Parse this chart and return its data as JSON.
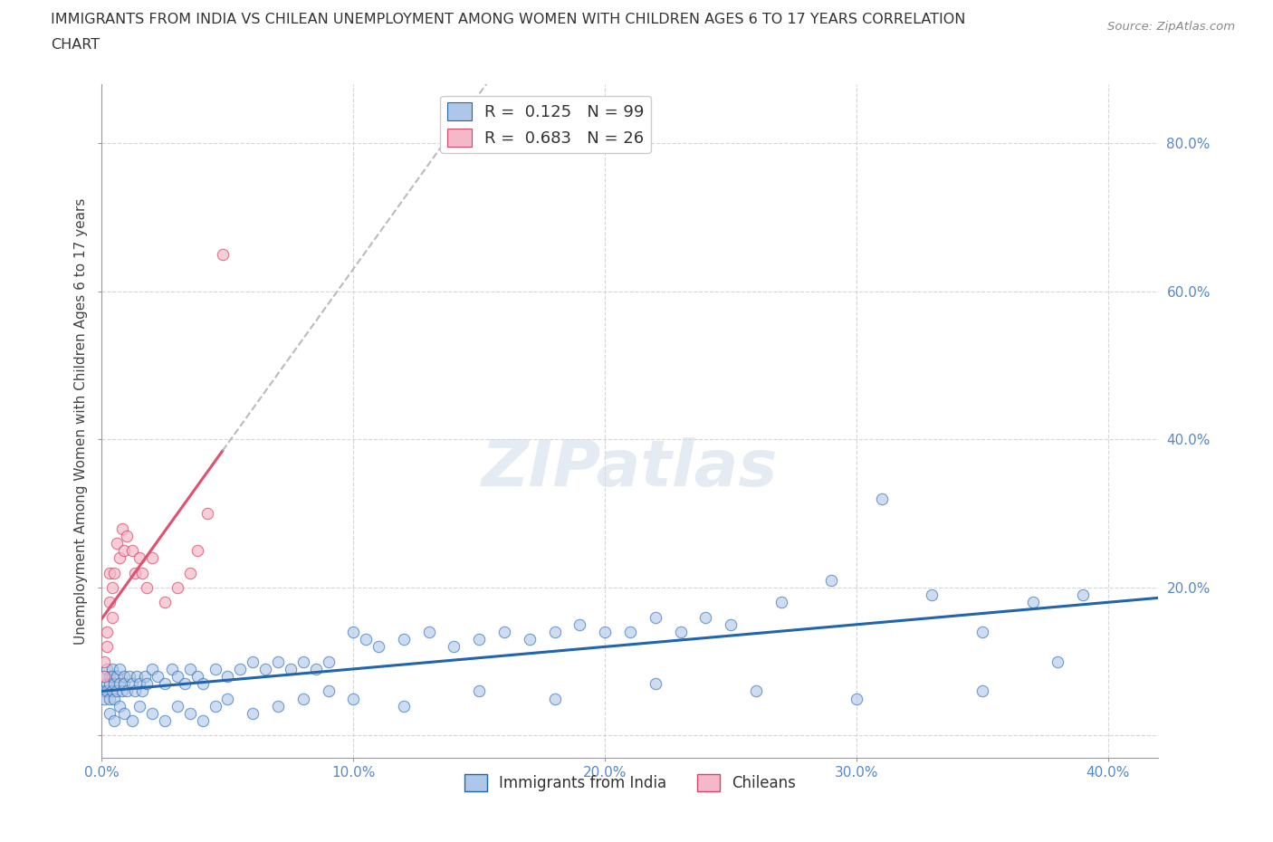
{
  "title_line1": "IMMIGRANTS FROM INDIA VS CHILEAN UNEMPLOYMENT AMONG WOMEN WITH CHILDREN AGES 6 TO 17 YEARS CORRELATION",
  "title_line2": "CHART",
  "source": "Source: ZipAtlas.com",
  "ylabel": "Unemployment Among Women with Children Ages 6 to 17 years",
  "R_india": 0.125,
  "N_india": 99,
  "R_chilean": 0.683,
  "N_chilean": 26,
  "india_face_color": "#aec6e8",
  "india_edge_color": "#2166ac",
  "chilean_face_color": "#f4b8c8",
  "chilean_edge_color": "#d6466a",
  "india_line_color": "#2166ac",
  "chilean_line_color": "#e05070",
  "chilean_dash_color": "#bbbbbb",
  "background_color": "#ffffff",
  "grid_color": "#cccccc",
  "tick_color": "#5588cc",
  "xlim": [
    0.0,
    0.42
  ],
  "ylim": [
    -0.03,
    0.88
  ],
  "x_ticks": [
    0.0,
    0.1,
    0.2,
    0.3,
    0.4
  ],
  "y_ticks": [
    0.0,
    0.2,
    0.4,
    0.6,
    0.8
  ],
  "india_x": [
    0.001,
    0.001,
    0.001,
    0.002,
    0.002,
    0.002,
    0.003,
    0.003,
    0.003,
    0.004,
    0.004,
    0.004,
    0.005,
    0.005,
    0.006,
    0.006,
    0.007,
    0.007,
    0.008,
    0.009,
    0.009,
    0.01,
    0.011,
    0.012,
    0.013,
    0.014,
    0.015,
    0.016,
    0.017,
    0.018,
    0.02,
    0.022,
    0.025,
    0.028,
    0.03,
    0.033,
    0.035,
    0.038,
    0.04,
    0.045,
    0.05,
    0.055,
    0.06,
    0.065,
    0.07,
    0.075,
    0.08,
    0.085,
    0.09,
    0.1,
    0.105,
    0.11,
    0.12,
    0.13,
    0.14,
    0.15,
    0.16,
    0.17,
    0.18,
    0.19,
    0.2,
    0.21,
    0.22,
    0.23,
    0.24,
    0.25,
    0.27,
    0.29,
    0.31,
    0.33,
    0.35,
    0.37,
    0.39,
    0.003,
    0.005,
    0.007,
    0.009,
    0.012,
    0.015,
    0.02,
    0.025,
    0.03,
    0.035,
    0.04,
    0.045,
    0.05,
    0.06,
    0.07,
    0.08,
    0.09,
    0.1,
    0.12,
    0.15,
    0.18,
    0.22,
    0.26,
    0.3,
    0.35,
    0.38
  ],
  "india_y": [
    0.06,
    0.08,
    0.05,
    0.07,
    0.09,
    0.06,
    0.08,
    0.05,
    0.07,
    0.09,
    0.06,
    0.08,
    0.07,
    0.05,
    0.06,
    0.08,
    0.07,
    0.09,
    0.06,
    0.08,
    0.07,
    0.06,
    0.08,
    0.07,
    0.06,
    0.08,
    0.07,
    0.06,
    0.08,
    0.07,
    0.09,
    0.08,
    0.07,
    0.09,
    0.08,
    0.07,
    0.09,
    0.08,
    0.07,
    0.09,
    0.08,
    0.09,
    0.1,
    0.09,
    0.1,
    0.09,
    0.1,
    0.09,
    0.1,
    0.14,
    0.13,
    0.12,
    0.13,
    0.14,
    0.12,
    0.13,
    0.14,
    0.13,
    0.14,
    0.15,
    0.14,
    0.14,
    0.16,
    0.14,
    0.16,
    0.15,
    0.18,
    0.21,
    0.32,
    0.19,
    0.14,
    0.18,
    0.19,
    0.03,
    0.02,
    0.04,
    0.03,
    0.02,
    0.04,
    0.03,
    0.02,
    0.04,
    0.03,
    0.02,
    0.04,
    0.05,
    0.03,
    0.04,
    0.05,
    0.06,
    0.05,
    0.04,
    0.06,
    0.05,
    0.07,
    0.06,
    0.05,
    0.06,
    0.1
  ],
  "chilean_x": [
    0.001,
    0.001,
    0.002,
    0.002,
    0.003,
    0.003,
    0.004,
    0.004,
    0.005,
    0.006,
    0.007,
    0.008,
    0.009,
    0.01,
    0.012,
    0.013,
    0.015,
    0.016,
    0.018,
    0.02,
    0.025,
    0.03,
    0.035,
    0.038,
    0.042,
    0.048
  ],
  "chilean_y": [
    0.1,
    0.08,
    0.14,
    0.12,
    0.22,
    0.18,
    0.2,
    0.16,
    0.22,
    0.26,
    0.24,
    0.28,
    0.25,
    0.27,
    0.25,
    0.22,
    0.24,
    0.22,
    0.2,
    0.24,
    0.18,
    0.2,
    0.22,
    0.25,
    0.3,
    0.65
  ]
}
